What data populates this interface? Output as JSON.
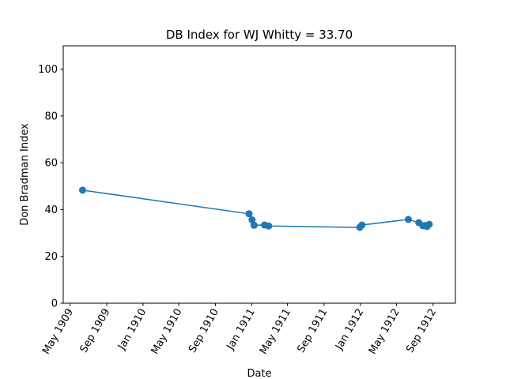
{
  "chart_data": {
    "type": "line",
    "title": "DB Index for WJ Whitty = 33.70",
    "xlabel": "Date",
    "ylabel": "Don Bradman Index",
    "ylim": [
      0,
      110
    ],
    "xlim": [
      "1909-04-08",
      "1912-11-15"
    ],
    "grid": false,
    "color": "#1f77b4",
    "xticks": [
      {
        "date": "1909-05-01",
        "label": "May 1909"
      },
      {
        "date": "1909-09-01",
        "label": "Sep 1909"
      },
      {
        "date": "1910-01-01",
        "label": "Jan 1910"
      },
      {
        "date": "1910-05-01",
        "label": "May 1910"
      },
      {
        "date": "1910-09-01",
        "label": "Sep 1910"
      },
      {
        "date": "1911-01-01",
        "label": "Jan 1911"
      },
      {
        "date": "1911-05-01",
        "label": "May 1911"
      },
      {
        "date": "1911-09-01",
        "label": "Sep 1911"
      },
      {
        "date": "1912-01-01",
        "label": "Jan 1912"
      },
      {
        "date": "1912-05-01",
        "label": "May 1912"
      },
      {
        "date": "1912-09-01",
        "label": "Sep 1912"
      }
    ],
    "yticks": [
      0,
      20,
      40,
      60,
      80,
      100
    ],
    "series": [
      {
        "points": [
          {
            "x": "1909-06-12",
            "y": 48.3
          },
          {
            "x": "1910-12-23",
            "y": 38.2
          },
          {
            "x": "1911-01-02",
            "y": 35.6
          },
          {
            "x": "1911-01-09",
            "y": 33.3
          },
          {
            "x": "1911-02-13",
            "y": 33.4
          },
          {
            "x": "1911-02-27",
            "y": 33.0
          },
          {
            "x": "1911-12-30",
            "y": 32.4
          },
          {
            "x": "1912-01-06",
            "y": 33.4
          },
          {
            "x": "1912-06-10",
            "y": 35.8
          },
          {
            "x": "1912-07-15",
            "y": 34.4
          },
          {
            "x": "1912-07-29",
            "y": 33.1
          },
          {
            "x": "1912-08-05",
            "y": 33.2
          },
          {
            "x": "1912-08-12",
            "y": 32.8
          },
          {
            "x": "1912-08-19",
            "y": 33.7
          }
        ]
      }
    ]
  }
}
